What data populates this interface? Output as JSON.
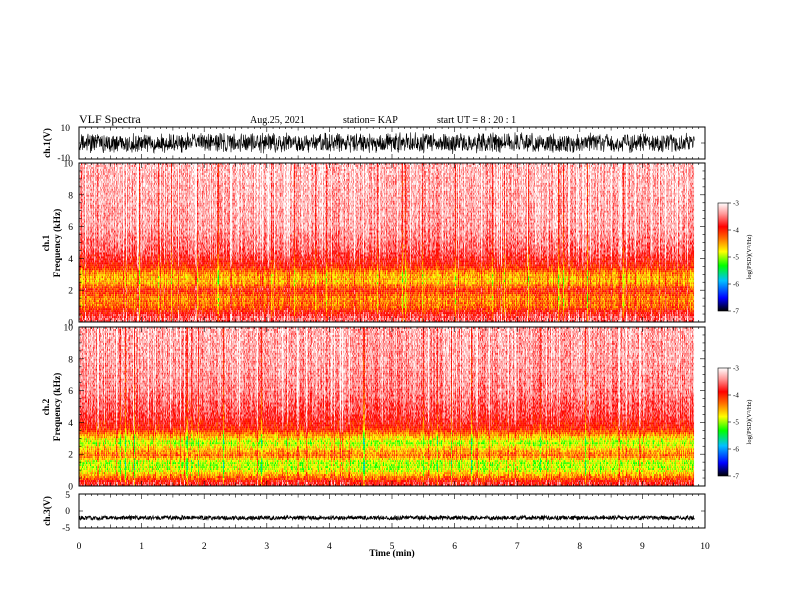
{
  "header": {
    "title": "VLF Spectra",
    "date": "Aug.25, 2021",
    "station": "station= KAP",
    "start": "start  UT =   8 : 20 : 1"
  },
  "chart_data": [
    {
      "type": "line",
      "panel": "ch1-waveform",
      "ylabel": "ch.1(V)",
      "ylim": [
        -10,
        10
      ],
      "yticks": [
        "10",
        "-10"
      ],
      "xlim": [
        0,
        10
      ],
      "x_data_end": 9.83,
      "series": [
        {
          "values_note_amplitude_range": [
            -7,
            7
          ]
        }
      ],
      "color": "#000000"
    },
    {
      "type": "heatmap",
      "panel": "ch1-spectrogram",
      "ylabel_line1": "ch.1",
      "ylabel_line2": "Frequency  (kHz)",
      "ylim": [
        0,
        10
      ],
      "yticks": [
        "0",
        "2",
        "4",
        "6",
        "8",
        "10"
      ],
      "xlim": [
        0,
        10
      ],
      "x_data_end": 9.83,
      "profile_log_psd": [
        {
          "f": 0.2,
          "v": -3.6
        },
        {
          "f": 0.6,
          "v": -3.9
        },
        {
          "f": 1.0,
          "v": -4.3
        },
        {
          "f": 1.5,
          "v": -4.4
        },
        {
          "f": 2.0,
          "v": -4.0
        },
        {
          "f": 2.5,
          "v": -4.6
        },
        {
          "f": 3.0,
          "v": -4.5
        },
        {
          "f": 3.5,
          "v": -4.0
        },
        {
          "f": 4.5,
          "v": -3.6
        },
        {
          "f": 6.0,
          "v": -3.4
        },
        {
          "f": 8.0,
          "v": -3.35
        },
        {
          "f": 10.0,
          "v": -3.3
        }
      ],
      "colorbar": {
        "ticks": [
          "-3",
          "-4",
          "-5",
          "-6",
          "-7"
        ],
        "range": [
          -7,
          -3
        ],
        "label": "log(PSD)(V²/Hz)"
      }
    },
    {
      "type": "heatmap",
      "panel": "ch2-spectrogram",
      "ylabel_line1": "ch.2",
      "ylabel_line2": "Frequency  (kHz)",
      "ylim": [
        0,
        10
      ],
      "yticks": [
        "0",
        "2",
        "4",
        "6",
        "8",
        "10"
      ],
      "xlim": [
        0,
        10
      ],
      "x_data_end": 9.83,
      "profile_log_psd": [
        {
          "f": 0.2,
          "v": -3.8
        },
        {
          "f": 0.6,
          "v": -4.4
        },
        {
          "f": 1.0,
          "v": -4.9
        },
        {
          "f": 1.5,
          "v": -5.0
        },
        {
          "f": 1.9,
          "v": -4.3
        },
        {
          "f": 2.3,
          "v": -4.6
        },
        {
          "f": 2.7,
          "v": -5.0
        },
        {
          "f": 3.1,
          "v": -4.6
        },
        {
          "f": 3.6,
          "v": -4.0
        },
        {
          "f": 4.5,
          "v": -3.7
        },
        {
          "f": 6.0,
          "v": -3.5
        },
        {
          "f": 8.0,
          "v": -3.4
        },
        {
          "f": 10.0,
          "v": -3.35
        }
      ],
      "colorbar": {
        "ticks": [
          "-3",
          "-4",
          "-5",
          "-6",
          "-7"
        ],
        "range": [
          -7,
          -3
        ],
        "label": "log(PSD)(V²/Hz)"
      }
    },
    {
      "type": "line",
      "panel": "ch3-waveform",
      "ylabel": "ch.3(V)",
      "ylim": [
        -5,
        5
      ],
      "yticks": [
        "5",
        "0",
        "-5"
      ],
      "xlim": [
        0,
        10
      ],
      "x_data_end": 9.83,
      "series": [
        {
          "values_note_level": -2.0,
          "values_note_amplitude": 0.6
        }
      ],
      "color": "#000000"
    }
  ],
  "xaxis": {
    "label": "Time  (min)",
    "ticks": [
      "0",
      "1",
      "2",
      "3",
      "4",
      "5",
      "6",
      "7",
      "8",
      "9",
      "10"
    ],
    "range": [
      0,
      10
    ]
  },
  "colors": {
    "background": "#ffffff",
    "axes": "#000000",
    "colormap": [
      "#000000",
      "#0000ff",
      "#00ffff",
      "#00ff00",
      "#ffff00",
      "#ff0000",
      "#ffffff"
    ]
  }
}
